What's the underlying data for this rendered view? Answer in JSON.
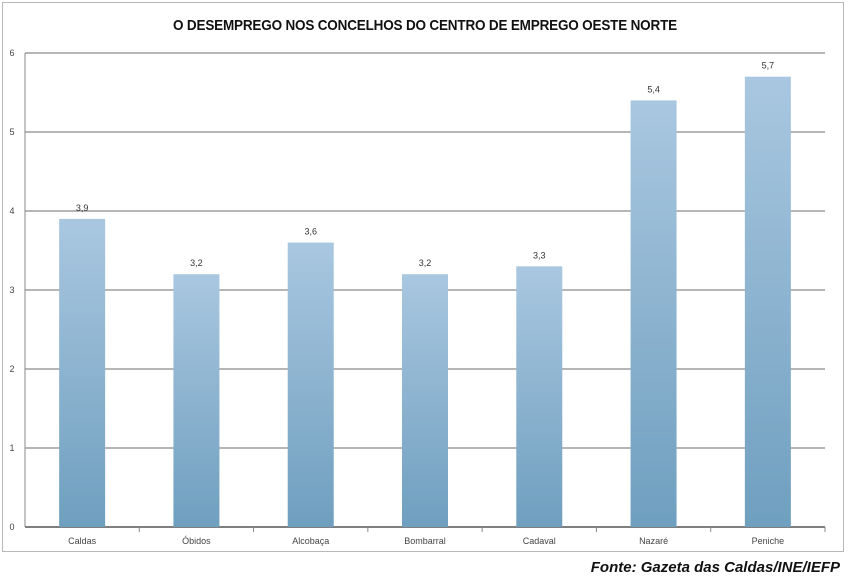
{
  "chart_data": {
    "type": "bar",
    "title": "O DESEMPREGO NOS CONCELHOS DO CENTRO DE EMPREGO OESTE NORTE",
    "categories": [
      "Caldas",
      "Óbidos",
      "Alcobaça",
      "Bombarral",
      "Cadaval",
      "Nazaré",
      "Peniche"
    ],
    "values": [
      3.9,
      3.2,
      3.6,
      3.2,
      3.3,
      5.4,
      5.7
    ],
    "data_labels": [
      "3,9",
      "3,2",
      "3,6",
      "3,2",
      "3,3",
      "5,4",
      "5,7"
    ],
    "xlabel": "",
    "ylabel": "",
    "ylim": [
      0,
      6
    ],
    "yticks": [
      0,
      1,
      2,
      3,
      4,
      5,
      6
    ],
    "grid": true,
    "bar_color_top": "#a9c7e0",
    "bar_color_bottom": "#6f9fbf",
    "source": "Fonte: Gazeta das Caldas/INE/IEFP"
  }
}
